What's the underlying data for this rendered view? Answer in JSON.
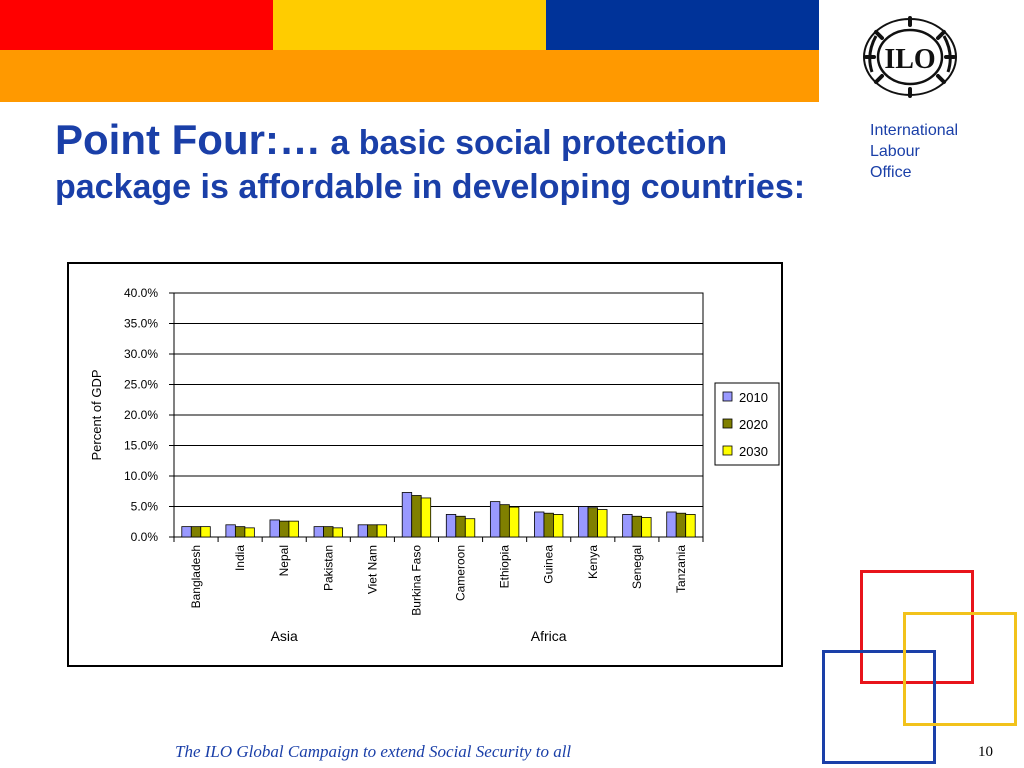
{
  "slide": {
    "title_lead": "Point Four:…",
    "title_rest": " a basic social protection package is affordable in developing countries:",
    "org_lines": [
      "International",
      "Labour",
      "Office"
    ],
    "logo_text": "ILO",
    "footer": "The ILO Global Campaign to extend Social Security to all",
    "page_number": "10"
  },
  "colors": {
    "red": "#ff0000",
    "yellow": "#ffcc00",
    "blue": "#003399",
    "orange": "#ff9900",
    "title_blue": "#1a3fa8"
  },
  "chart_data": {
    "type": "bar",
    "ylabel": "Percent of GDP",
    "ylim": [
      0,
      40
    ],
    "yticks": [
      "0.0%",
      "5.0%",
      "10.0%",
      "15.0%",
      "20.0%",
      "25.0%",
      "30.0%",
      "35.0%",
      "40.0%"
    ],
    "grid": true,
    "legend_position": "right",
    "categories": [
      "Bangladesh",
      "India",
      "Nepal",
      "Pakistan",
      "Viet Nam",
      "Burkina Faso",
      "Cameroon",
      "Ethiopia",
      "Guinea",
      "Kenya",
      "Senegal",
      "Tanzania"
    ],
    "groups": [
      {
        "label": "Asia",
        "start": 0,
        "end": 4
      },
      {
        "label": "Africa",
        "start": 5,
        "end": 11
      }
    ],
    "series": [
      {
        "name": "2010",
        "color": "#9999ff",
        "values": [
          1.7,
          2.0,
          2.8,
          1.7,
          2.0,
          7.3,
          3.7,
          5.8,
          4.1,
          5.0,
          3.7,
          4.1
        ]
      },
      {
        "name": "2020",
        "color": "#808000",
        "values": [
          1.7,
          1.7,
          2.6,
          1.7,
          2.0,
          6.8,
          3.4,
          5.3,
          3.9,
          4.8,
          3.4,
          3.9
        ]
      },
      {
        "name": "2030",
        "color": "#ffff00",
        "values": [
          1.7,
          1.5,
          2.6,
          1.5,
          2.0,
          6.4,
          3.0,
          4.9,
          3.7,
          4.5,
          3.2,
          3.7
        ]
      }
    ]
  }
}
